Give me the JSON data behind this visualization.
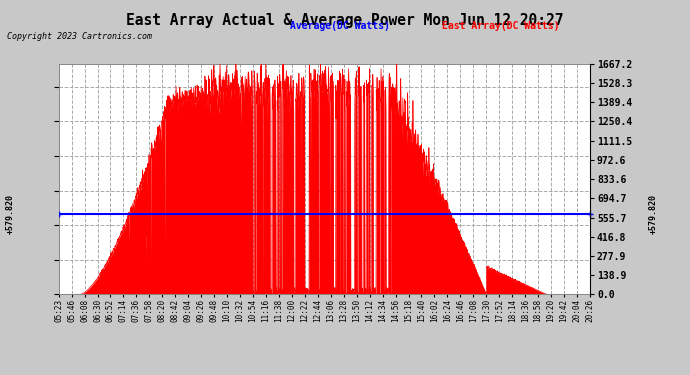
{
  "title": "East Array Actual & Average Power Mon Jun 12 20:27",
  "copyright": "Copyright 2023 Cartronics.com",
  "legend_avg": "Average(DC Watts)",
  "legend_east": "East Array(DC Watts)",
  "avg_value": 579.82,
  "ymax": 1667.2,
  "ymin": 0.0,
  "yticks": [
    0.0,
    138.9,
    277.9,
    416.8,
    555.7,
    694.7,
    833.6,
    972.6,
    1111.5,
    1250.4,
    1389.4,
    1528.3,
    1667.2
  ],
  "bg_color": "#c8c8c8",
  "plot_bg": "#ffffff",
  "grid_color": "#aaaaaa",
  "avg_line_color": "blue",
  "east_fill_color": "red",
  "east_line_color": "red",
  "xtick_labels": [
    "05:23",
    "05:46",
    "06:08",
    "06:30",
    "06:52",
    "07:14",
    "07:36",
    "07:58",
    "08:20",
    "08:42",
    "09:04",
    "09:26",
    "09:48",
    "10:10",
    "10:32",
    "10:54",
    "11:16",
    "11:38",
    "12:00",
    "12:22",
    "12:44",
    "13:06",
    "13:28",
    "13:50",
    "14:12",
    "14:34",
    "14:56",
    "15:18",
    "15:40",
    "16:02",
    "16:24",
    "16:46",
    "17:08",
    "17:30",
    "17:52",
    "18:14",
    "18:36",
    "18:58",
    "19:20",
    "19:42",
    "20:04",
    "20:26"
  ]
}
